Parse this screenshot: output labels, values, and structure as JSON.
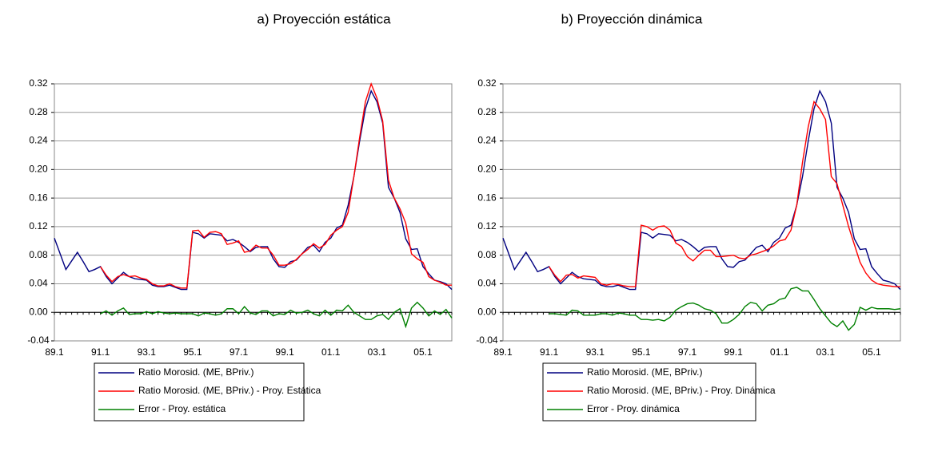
{
  "chart_data": [
    {
      "type": "line",
      "title": "a)   Proyección estática",
      "categories": [
        "89.1",
        null,
        null,
        null,
        null,
        null,
        null,
        null,
        "91.1",
        null,
        null,
        null,
        null,
        null,
        null,
        null,
        "93.1",
        null,
        null,
        null,
        null,
        null,
        null,
        null,
        "95.1",
        null,
        null,
        null,
        null,
        null,
        null,
        null,
        "97.1",
        null,
        null,
        null,
        null,
        null,
        null,
        null,
        "99.1",
        null,
        null,
        null,
        null,
        null,
        null,
        null,
        "01.1",
        null,
        null,
        null,
        null,
        null,
        null,
        null,
        "03.1",
        null,
        null,
        null,
        null,
        null,
        null,
        null,
        "05.1",
        null,
        null,
        null,
        null,
        null
      ],
      "ylim": [
        -0.04,
        0.32
      ],
      "yticks": [
        -0.04,
        {
          "value": 0,
          "label": "0.00"
        },
        0.04,
        0.08,
        0.12,
        0.16,
        {
          "value": 0.2,
          "label": "0.20"
        },
        0.24,
        0.28,
        0.32
      ],
      "grid": true,
      "legend": "bottom",
      "series": [
        {
          "name": "Ratio Morosid. (ME, BPriv.)",
          "color": "#000080",
          "values": [
            0.104,
            0.082,
            0.06,
            0.072,
            0.084,
            0.071,
            0.057,
            0.06,
            0.064,
            0.05,
            0.04,
            0.048,
            0.056,
            0.05,
            0.047,
            0.046,
            0.045,
            0.038,
            0.036,
            0.036,
            0.038,
            0.035,
            0.032,
            0.032,
            0.112,
            0.11,
            0.104,
            0.11,
            0.109,
            0.108,
            0.1,
            0.102,
            0.098,
            0.092,
            0.085,
            0.091,
            0.092,
            0.092,
            0.075,
            0.064,
            0.063,
            0.071,
            0.073,
            0.082,
            0.091,
            0.094,
            0.085,
            0.098,
            0.104,
            0.118,
            0.122,
            0.15,
            0.19,
            0.24,
            0.285,
            0.31,
            0.295,
            0.265,
            0.175,
            0.16,
            0.14,
            0.103,
            0.088,
            0.089,
            0.064,
            0.054,
            0.045,
            0.043,
            0.04,
            0.032
          ]
        },
        {
          "name": "Ratio Morosid. (ME, BPriv.) - Proy. Estática",
          "color": "#ff0000",
          "values": [
            null,
            null,
            null,
            null,
            null,
            null,
            null,
            null,
            0.064,
            0.052,
            0.043,
            0.05,
            0.053,
            0.05,
            0.051,
            0.048,
            0.046,
            0.04,
            0.037,
            0.037,
            0.04,
            0.036,
            0.034,
            0.034,
            0.114,
            0.115,
            0.105,
            0.112,
            0.113,
            0.11,
            0.095,
            0.097,
            0.1,
            0.084,
            0.086,
            0.094,
            0.09,
            0.09,
            0.08,
            0.066,
            0.066,
            0.068,
            0.074,
            0.082,
            0.088,
            0.096,
            0.09,
            0.095,
            0.108,
            0.115,
            0.12,
            0.14,
            0.19,
            0.245,
            0.295,
            0.32,
            0.3,
            0.268,
            0.185,
            0.16,
            0.145,
            0.125,
            0.082,
            0.075,
            0.07,
            0.05,
            0.045,
            0.042,
            0.038,
            0.038
          ]
        },
        {
          "name": "Error - Proy. estática",
          "color": "#008000",
          "values": [
            null,
            null,
            null,
            null,
            null,
            null,
            null,
            null,
            -0.002,
            0.002,
            -0.004,
            0.002,
            0.006,
            -0.003,
            -0.002,
            -0.002,
            0.001,
            -0.002,
            0.001,
            -0.001,
            -0.002,
            -0.001,
            -0.002,
            -0.002,
            -0.002,
            -0.005,
            -0.001,
            -0.002,
            -0.004,
            -0.002,
            0.005,
            0.005,
            -0.002,
            0.008,
            -0.001,
            -0.003,
            0.002,
            0.002,
            -0.005,
            -0.002,
            -0.003,
            0.003,
            -0.001,
            0,
            0.003,
            -0.002,
            -0.005,
            0.003,
            -0.004,
            0.003,
            0.002,
            0.01,
            0,
            -0.005,
            -0.01,
            -0.01,
            -0.005,
            -0.003,
            -0.01,
            0,
            0.005,
            -0.02,
            0.006,
            0.014,
            0.006,
            -0.005,
            0.002,
            -0.003,
            0.004,
            -0.008
          ]
        }
      ]
    },
    {
      "type": "line",
      "title": "b)  Proyección dinámica",
      "categories": [
        "89.1",
        null,
        null,
        null,
        null,
        null,
        null,
        null,
        "91.1",
        null,
        null,
        null,
        null,
        null,
        null,
        null,
        "93.1",
        null,
        null,
        null,
        null,
        null,
        null,
        null,
        "95.1",
        null,
        null,
        null,
        null,
        null,
        null,
        null,
        "97.1",
        null,
        null,
        null,
        null,
        null,
        null,
        null,
        "99.1",
        null,
        null,
        null,
        null,
        null,
        null,
        null,
        "01.1",
        null,
        null,
        null,
        null,
        null,
        null,
        null,
        "03.1",
        null,
        null,
        null,
        null,
        null,
        null,
        null,
        "05.1",
        null,
        null,
        null,
        null,
        null
      ],
      "ylim": [
        -0.04,
        0.32
      ],
      "yticks": [
        -0.04,
        {
          "value": 0,
          "label": "0.00"
        },
        0.04,
        0.08,
        0.12,
        0.16,
        {
          "value": 0.2,
          "label": "0.20"
        },
        0.24,
        0.28,
        0.32
      ],
      "grid": true,
      "legend": "bottom",
      "series": [
        {
          "name": "Ratio Morosid. (ME, BPriv.)",
          "color": "#000080",
          "values": [
            0.104,
            0.082,
            0.06,
            0.072,
            0.084,
            0.071,
            0.057,
            0.06,
            0.064,
            0.05,
            0.04,
            0.048,
            0.056,
            0.05,
            0.047,
            0.046,
            0.045,
            0.038,
            0.036,
            0.036,
            0.038,
            0.035,
            0.032,
            0.032,
            0.112,
            0.11,
            0.104,
            0.11,
            0.109,
            0.108,
            0.1,
            0.102,
            0.098,
            0.092,
            0.085,
            0.091,
            0.092,
            0.092,
            0.075,
            0.064,
            0.063,
            0.071,
            0.073,
            0.082,
            0.091,
            0.094,
            0.085,
            0.098,
            0.104,
            0.118,
            0.122,
            0.15,
            0.19,
            0.24,
            0.285,
            0.31,
            0.295,
            0.265,
            0.175,
            0.16,
            0.14,
            0.103,
            0.088,
            0.089,
            0.064,
            0.054,
            0.045,
            0.043,
            0.04,
            0.032
          ]
        },
        {
          "name": "Ratio Morosid. (ME, BPriv.) - Proy. Dinámica",
          "color": "#ff0000",
          "values": [
            null,
            null,
            null,
            null,
            null,
            null,
            null,
            null,
            0.064,
            0.052,
            0.043,
            0.052,
            0.053,
            0.048,
            0.051,
            0.05,
            0.049,
            0.04,
            0.038,
            0.04,
            0.039,
            0.037,
            0.036,
            0.036,
            0.122,
            0.12,
            0.115,
            0.12,
            0.121,
            0.115,
            0.097,
            0.092,
            0.078,
            0.072,
            0.08,
            0.087,
            0.087,
            0.078,
            0.078,
            0.079,
            0.08,
            0.076,
            0.075,
            0.08,
            0.082,
            0.085,
            0.088,
            0.093,
            0.1,
            0.102,
            0.115,
            0.15,
            0.21,
            0.26,
            0.295,
            0.285,
            0.27,
            0.19,
            0.18,
            0.15,
            0.12,
            0.095,
            0.07,
            0.055,
            0.045,
            0.04,
            0.038,
            0.037,
            0.036,
            0.036
          ]
        },
        {
          "name": "Error - Proy. dinámica",
          "color": "#008000",
          "values": [
            null,
            null,
            null,
            null,
            null,
            null,
            null,
            null,
            -0.002,
            -0.002,
            -0.003,
            -0.004,
            0.003,
            0.002,
            -0.004,
            -0.004,
            -0.004,
            -0.002,
            -0.002,
            -0.004,
            -0.001,
            -0.002,
            -0.004,
            -0.004,
            -0.01,
            -0.01,
            -0.011,
            -0.01,
            -0.012,
            -0.007,
            0.003,
            0.008,
            0.012,
            0.013,
            0.01,
            0.005,
            0.003,
            -0.002,
            -0.015,
            -0.015,
            -0.01,
            -0.003,
            0.008,
            0.014,
            0.012,
            0.002,
            0.01,
            0.012,
            0.018,
            0.02,
            0.033,
            0.035,
            0.03,
            0.03,
            0.018,
            0.005,
            -0.005,
            -0.015,
            -0.02,
            -0.012,
            -0.025,
            -0.017,
            0.007,
            0.003,
            0.007,
            0.005,
            0.005,
            0.005,
            0.004,
            0.005
          ]
        }
      ]
    }
  ]
}
